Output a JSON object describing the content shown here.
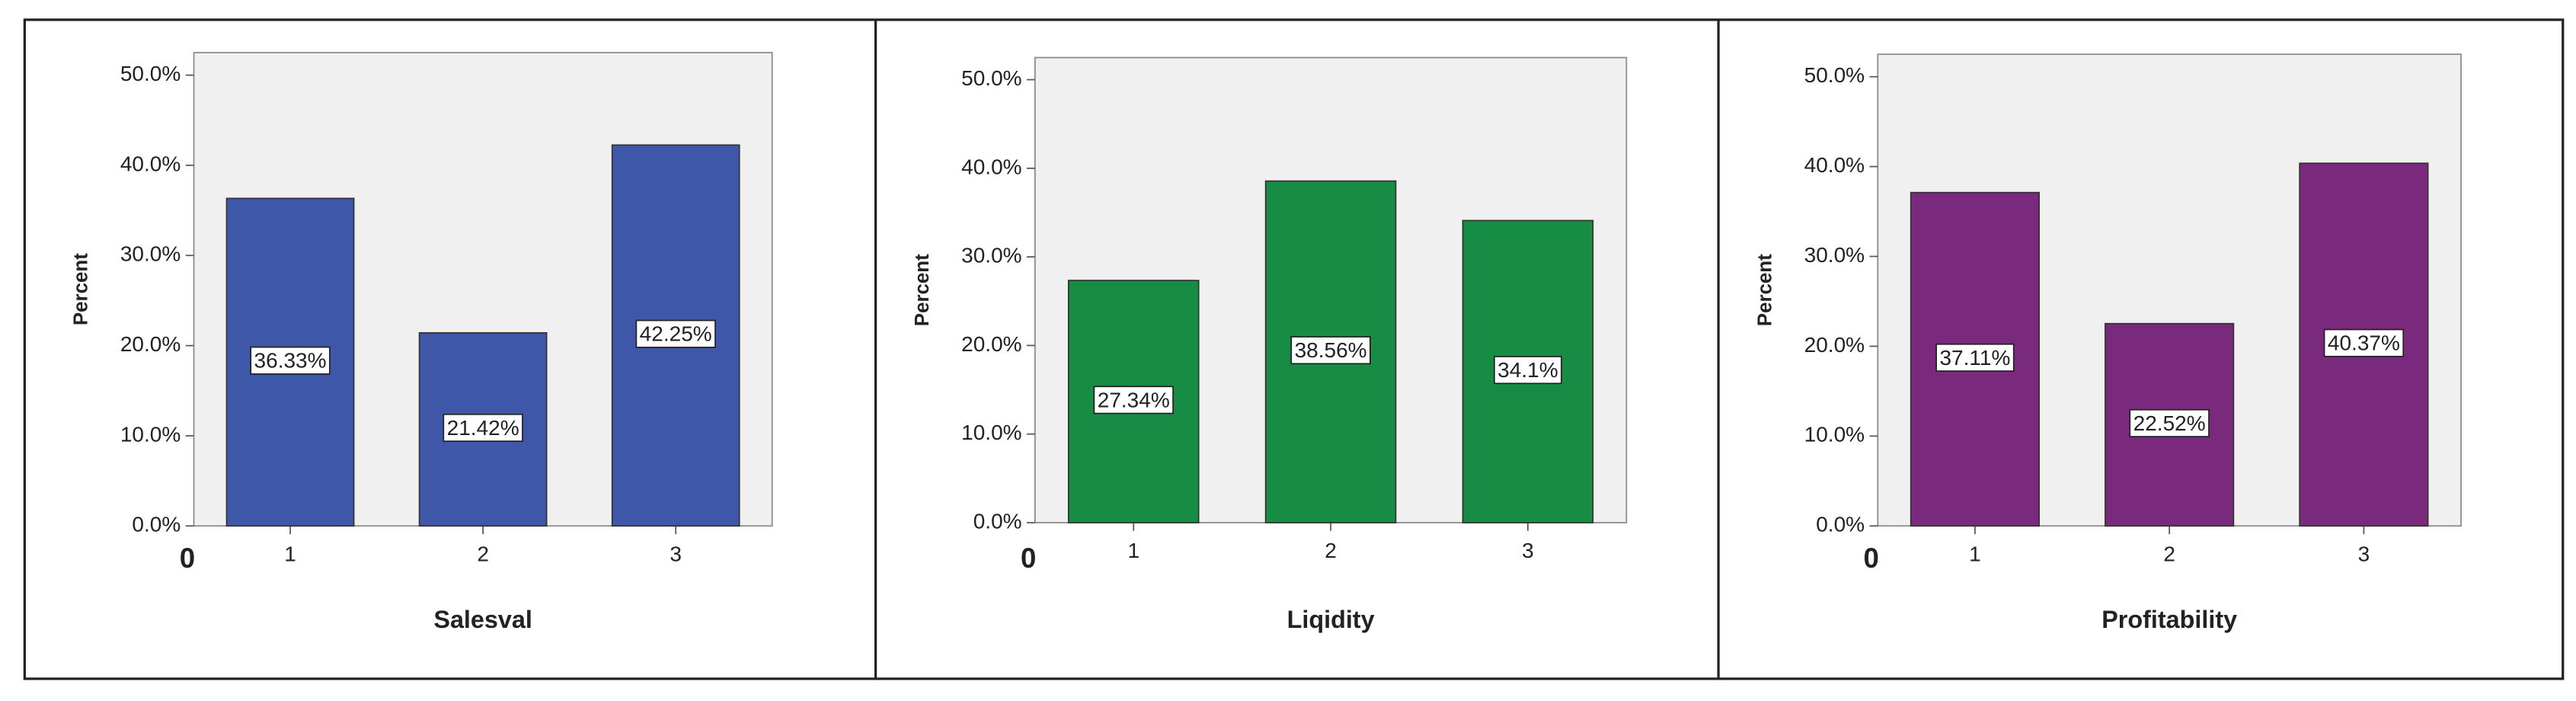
{
  "chart_data": [
    {
      "type": "bar",
      "xlabel": "Salesval",
      "ylabel": "Percent",
      "annotation": "0",
      "categories": [
        "1",
        "2",
        "3"
      ],
      "values": [
        36.33,
        21.42,
        42.25
      ],
      "value_labels": [
        "36.33%",
        "21.42%",
        "42.25%"
      ],
      "color": "#3f57a8",
      "ylim": [
        0,
        52.5
      ],
      "yticks": [
        {
          "value": 0,
          "label": "0.0%"
        },
        {
          "value": 10,
          "label": "10.0%"
        },
        {
          "value": 20,
          "label": "20.0%"
        },
        {
          "value": 30,
          "label": "30.0%"
        },
        {
          "value": 40,
          "label": "40.0%"
        },
        {
          "value": 50,
          "label": "50.0%"
        }
      ]
    },
    {
      "type": "bar",
      "xlabel": "Liqidity",
      "ylabel": "Percent",
      "annotation": "0",
      "categories": [
        "1",
        "2",
        "3"
      ],
      "values": [
        27.34,
        38.56,
        34.1
      ],
      "value_labels": [
        "27.34%",
        "38.56%",
        "34.1%"
      ],
      "color": "#168c45",
      "ylim": [
        0,
        52.5
      ],
      "yticks": [
        {
          "value": 0,
          "label": "0.0%"
        },
        {
          "value": 10,
          "label": "10.0%"
        },
        {
          "value": 20,
          "label": "20.0%"
        },
        {
          "value": 30,
          "label": "30.0%"
        },
        {
          "value": 40,
          "label": "40.0%"
        },
        {
          "value": 50,
          "label": "50.0%"
        }
      ]
    },
    {
      "type": "bar",
      "xlabel": "Profitability",
      "ylabel": "Percent",
      "annotation": "0",
      "categories": [
        "1",
        "2",
        "3"
      ],
      "values": [
        37.11,
        22.52,
        40.37
      ],
      "value_labels": [
        "37.11%",
        "22.52%",
        "40.37%"
      ],
      "color": "#7a2a7c",
      "ylim": [
        0,
        52.5
      ],
      "yticks": [
        {
          "value": 0,
          "label": "0.0%"
        },
        {
          "value": 10,
          "label": "10.0%"
        },
        {
          "value": 20,
          "label": "20.0%"
        },
        {
          "value": 30,
          "label": "30.0%"
        },
        {
          "value": 40,
          "label": "40.0%"
        },
        {
          "value": 50,
          "label": "50.0%"
        }
      ]
    }
  ]
}
